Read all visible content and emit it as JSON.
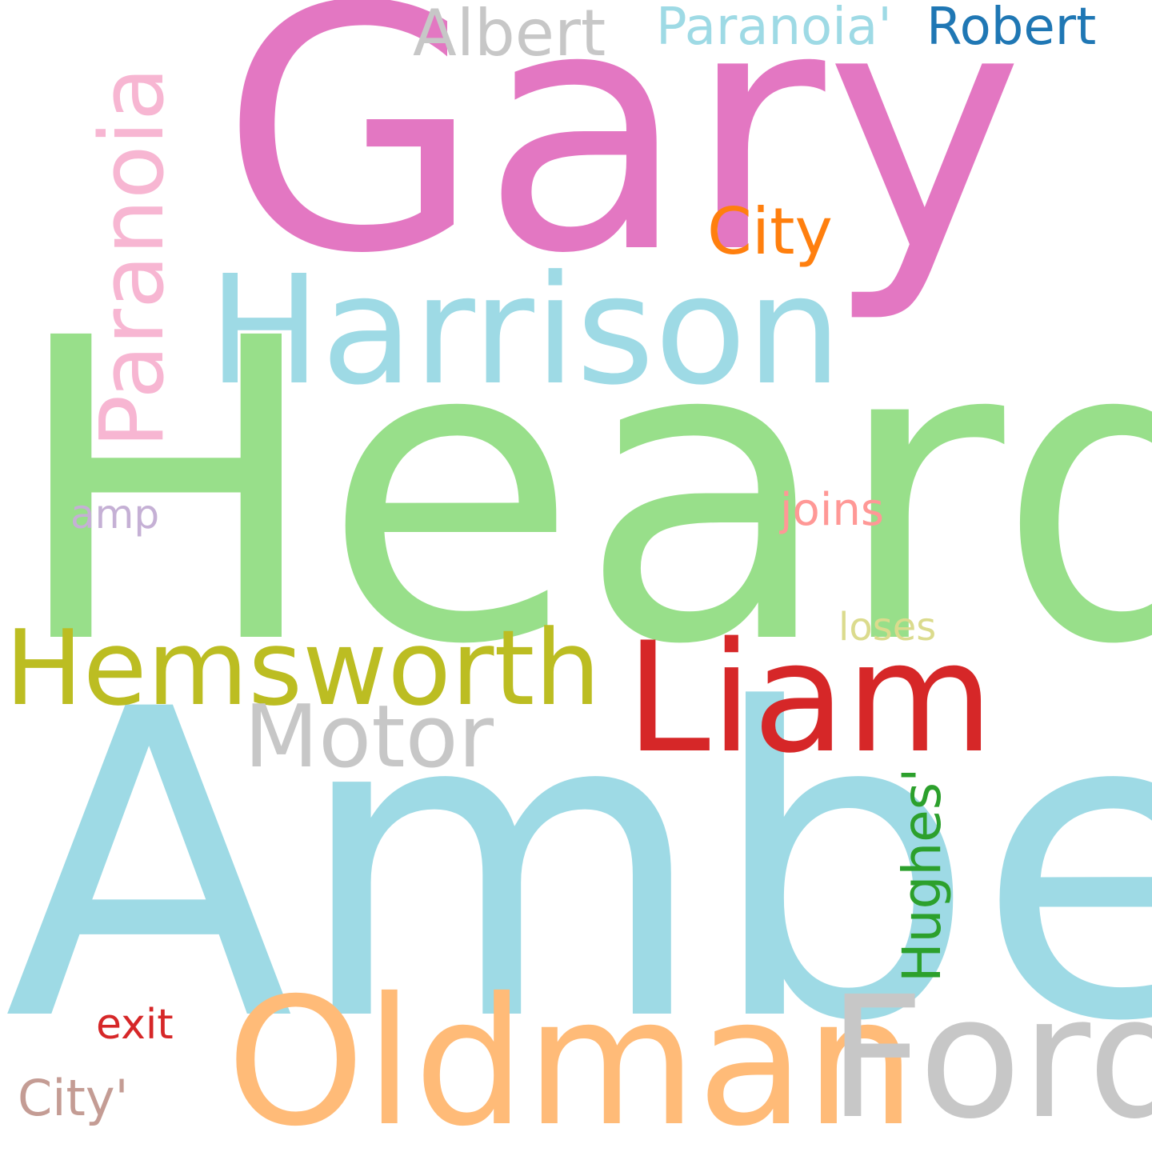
{
  "words": [
    {
      "id": "gary",
      "text": "Gary",
      "color": "#e377c2"
    },
    {
      "id": "heard",
      "text": "Heard",
      "color": "#98df8a"
    },
    {
      "id": "amber",
      "text": "Amber",
      "color": "#9edae5"
    },
    {
      "id": "harrison",
      "text": "Harrison",
      "color": "#9edae5"
    },
    {
      "id": "oldman",
      "text": "Oldman",
      "color": "#ffbb78"
    },
    {
      "id": "ford",
      "text": "Ford",
      "color": "#c7c7c7"
    },
    {
      "id": "liam",
      "text": "Liam",
      "color": "#d62728"
    },
    {
      "id": "hemsworth",
      "text": "Hemsworth",
      "color": "#bcbd22"
    },
    {
      "id": "motor",
      "text": "Motor",
      "color": "#c7c7c7"
    },
    {
      "id": "albert",
      "text": "Albert",
      "color": "#c7c7c7"
    },
    {
      "id": "paranoia_quote",
      "text": "Paranoia'",
      "color": "#9edae5"
    },
    {
      "id": "robert",
      "text": "Robert",
      "color": "#1f77b4"
    },
    {
      "id": "city",
      "text": "City",
      "color": "#ff7f0e"
    },
    {
      "id": "joins",
      "text": "joins",
      "color": "#ff9896"
    },
    {
      "id": "loses",
      "text": "loses",
      "color": "#dbdb8d"
    },
    {
      "id": "amp",
      "text": "amp",
      "color": "#c5b0d5"
    },
    {
      "id": "exit",
      "text": "exit",
      "color": "#d62728"
    },
    {
      "id": "city_quote",
      "text": "City'",
      "color": "#c49c94"
    },
    {
      "id": "paranoia_vertical",
      "text": "Paranoia",
      "color": "#f7b6d2"
    },
    {
      "id": "hughes_quote",
      "text": "Hughes'",
      "color": "#2ca02c"
    }
  ]
}
